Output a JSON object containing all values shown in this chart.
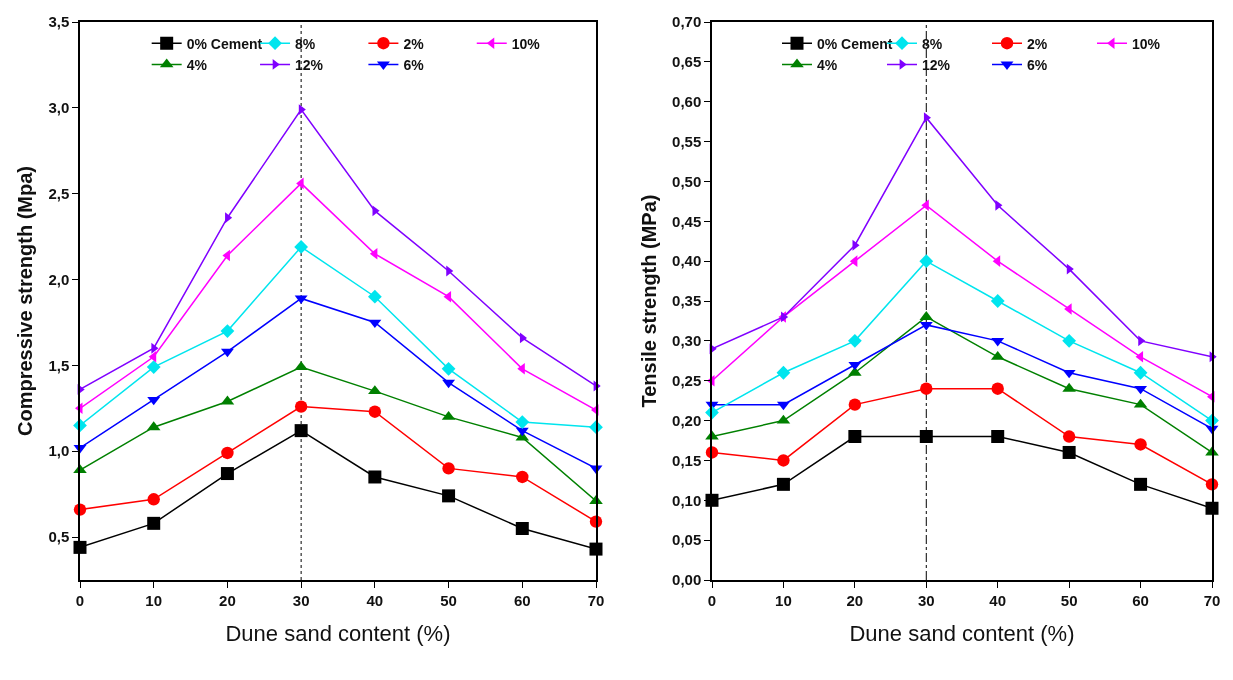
{
  "chart_data": [
    {
      "type": "line",
      "xlabel": "Dune sand content (%)",
      "ylabel": "Compressive strength (Mpa)",
      "x": [
        0,
        10,
        20,
        30,
        40,
        50,
        60,
        70
      ],
      "xlim": [
        0,
        70
      ],
      "xticks": [
        0,
        10,
        20,
        30,
        40,
        50,
        60,
        70
      ],
      "ylim": [
        0.25,
        3.5
      ],
      "yticks": [
        {
          "value": 0.5,
          "label": "0,5"
        },
        {
          "value": 1.0,
          "label": "1,0"
        },
        {
          "value": 1.5,
          "label": "1,5"
        },
        {
          "value": 2.0,
          "label": "2,0"
        },
        {
          "value": 2.5,
          "label": "2,5"
        },
        {
          "value": 3.0,
          "label": "3,0"
        },
        {
          "value": 3.5,
          "label": "3,5"
        }
      ],
      "grid": false,
      "legend": "top right",
      "line_style": "solid",
      "ref_lines": [
        {
          "axis": "x",
          "value": 30,
          "color": "#000000",
          "line_style": "dotted"
        }
      ],
      "series": [
        {
          "name": "0% Cement",
          "color": "#000000",
          "marker": "square",
          "values": [
            0.44,
            0.58,
            0.87,
            1.12,
            0.85,
            0.74,
            0.55,
            0.43
          ]
        },
        {
          "name": "2%",
          "color": "#ff0000",
          "marker": "circle",
          "values": [
            0.66,
            0.72,
            0.99,
            1.26,
            1.23,
            0.9,
            0.85,
            0.59
          ]
        },
        {
          "name": "4%",
          "color": "#008000",
          "marker": "triangle-up",
          "values": [
            0.89,
            1.14,
            1.29,
            1.49,
            1.35,
            1.2,
            1.08,
            0.71
          ]
        },
        {
          "name": "6%",
          "color": "#0000ff",
          "marker": "triangle-down",
          "values": [
            1.02,
            1.3,
            1.58,
            1.89,
            1.75,
            1.4,
            1.12,
            0.9
          ]
        },
        {
          "name": "8%",
          "color": "#00e5ee",
          "marker": "diamond",
          "values": [
            1.15,
            1.49,
            1.7,
            2.19,
            1.9,
            1.48,
            1.17,
            1.14
          ]
        },
        {
          "name": "10%",
          "color": "#ff00ff",
          "marker": "triangle-left",
          "values": [
            1.25,
            1.55,
            2.14,
            2.56,
            2.15,
            1.9,
            1.48,
            1.24
          ]
        },
        {
          "name": "12%",
          "color": "#8000ff",
          "marker": "triangle-right",
          "values": [
            1.36,
            1.6,
            2.36,
            2.99,
            2.4,
            2.05,
            1.66,
            1.38
          ]
        }
      ]
    },
    {
      "type": "line",
      "xlabel": "Dune sand content (%)",
      "ylabel": "Tensile strength (MPa)",
      "x": [
        0,
        10,
        20,
        30,
        40,
        50,
        60,
        70
      ],
      "xlim": [
        0,
        70
      ],
      "xticks": [
        0,
        10,
        20,
        30,
        40,
        50,
        60,
        70
      ],
      "ylim": [
        0,
        0.7
      ],
      "yticks": [
        {
          "value": 0,
          "label": "0,00"
        },
        {
          "value": 0.05,
          "label": "0,05"
        },
        {
          "value": 0.1,
          "label": "0,10"
        },
        {
          "value": 0.15,
          "label": "0,15"
        },
        {
          "value": 0.2,
          "label": "0,20"
        },
        {
          "value": 0.25,
          "label": "0,25"
        },
        {
          "value": 0.3,
          "label": "0,30"
        },
        {
          "value": 0.35,
          "label": "0,35"
        },
        {
          "value": 0.4,
          "label": "0,40"
        },
        {
          "value": 0.45,
          "label": "0,45"
        },
        {
          "value": 0.5,
          "label": "0,50"
        },
        {
          "value": 0.55,
          "label": "0,55"
        },
        {
          "value": 0.6,
          "label": "0,60"
        },
        {
          "value": 0.65,
          "label": "0,65"
        },
        {
          "value": 0.7,
          "label": "0,70"
        }
      ],
      "grid": false,
      "legend": "top right",
      "line_style": "solid",
      "ref_lines": [
        {
          "axis": "x",
          "value": 30,
          "color": "#000000",
          "line_style": "dashdot"
        }
      ],
      "series": [
        {
          "name": "0% Cement",
          "color": "#000000",
          "marker": "square",
          "values": [
            0.1,
            0.12,
            0.18,
            0.18,
            0.18,
            0.16,
            0.12,
            0.09
          ]
        },
        {
          "name": "2%",
          "color": "#ff0000",
          "marker": "circle",
          "values": [
            0.16,
            0.15,
            0.22,
            0.24,
            0.24,
            0.18,
            0.17,
            0.12
          ]
        },
        {
          "name": "4%",
          "color": "#008000",
          "marker": "triangle-up",
          "values": [
            0.18,
            0.2,
            0.26,
            0.33,
            0.28,
            0.24,
            0.22,
            0.16
          ]
        },
        {
          "name": "6%",
          "color": "#0000ff",
          "marker": "triangle-down",
          "values": [
            0.22,
            0.22,
            0.27,
            0.32,
            0.3,
            0.26,
            0.24,
            0.19
          ]
        },
        {
          "name": "8%",
          "color": "#00e5ee",
          "marker": "diamond",
          "values": [
            0.21,
            0.26,
            0.3,
            0.4,
            0.35,
            0.3,
            0.26,
            0.2
          ]
        },
        {
          "name": "10%",
          "color": "#ff00ff",
          "marker": "triangle-left",
          "values": [
            0.25,
            0.33,
            0.4,
            0.47,
            0.4,
            0.34,
            0.28,
            0.23
          ]
        },
        {
          "name": "12%",
          "color": "#8000ff",
          "marker": "triangle-right",
          "values": [
            0.29,
            0.33,
            0.42,
            0.58,
            0.47,
            0.39,
            0.3,
            0.28
          ]
        }
      ]
    }
  ]
}
